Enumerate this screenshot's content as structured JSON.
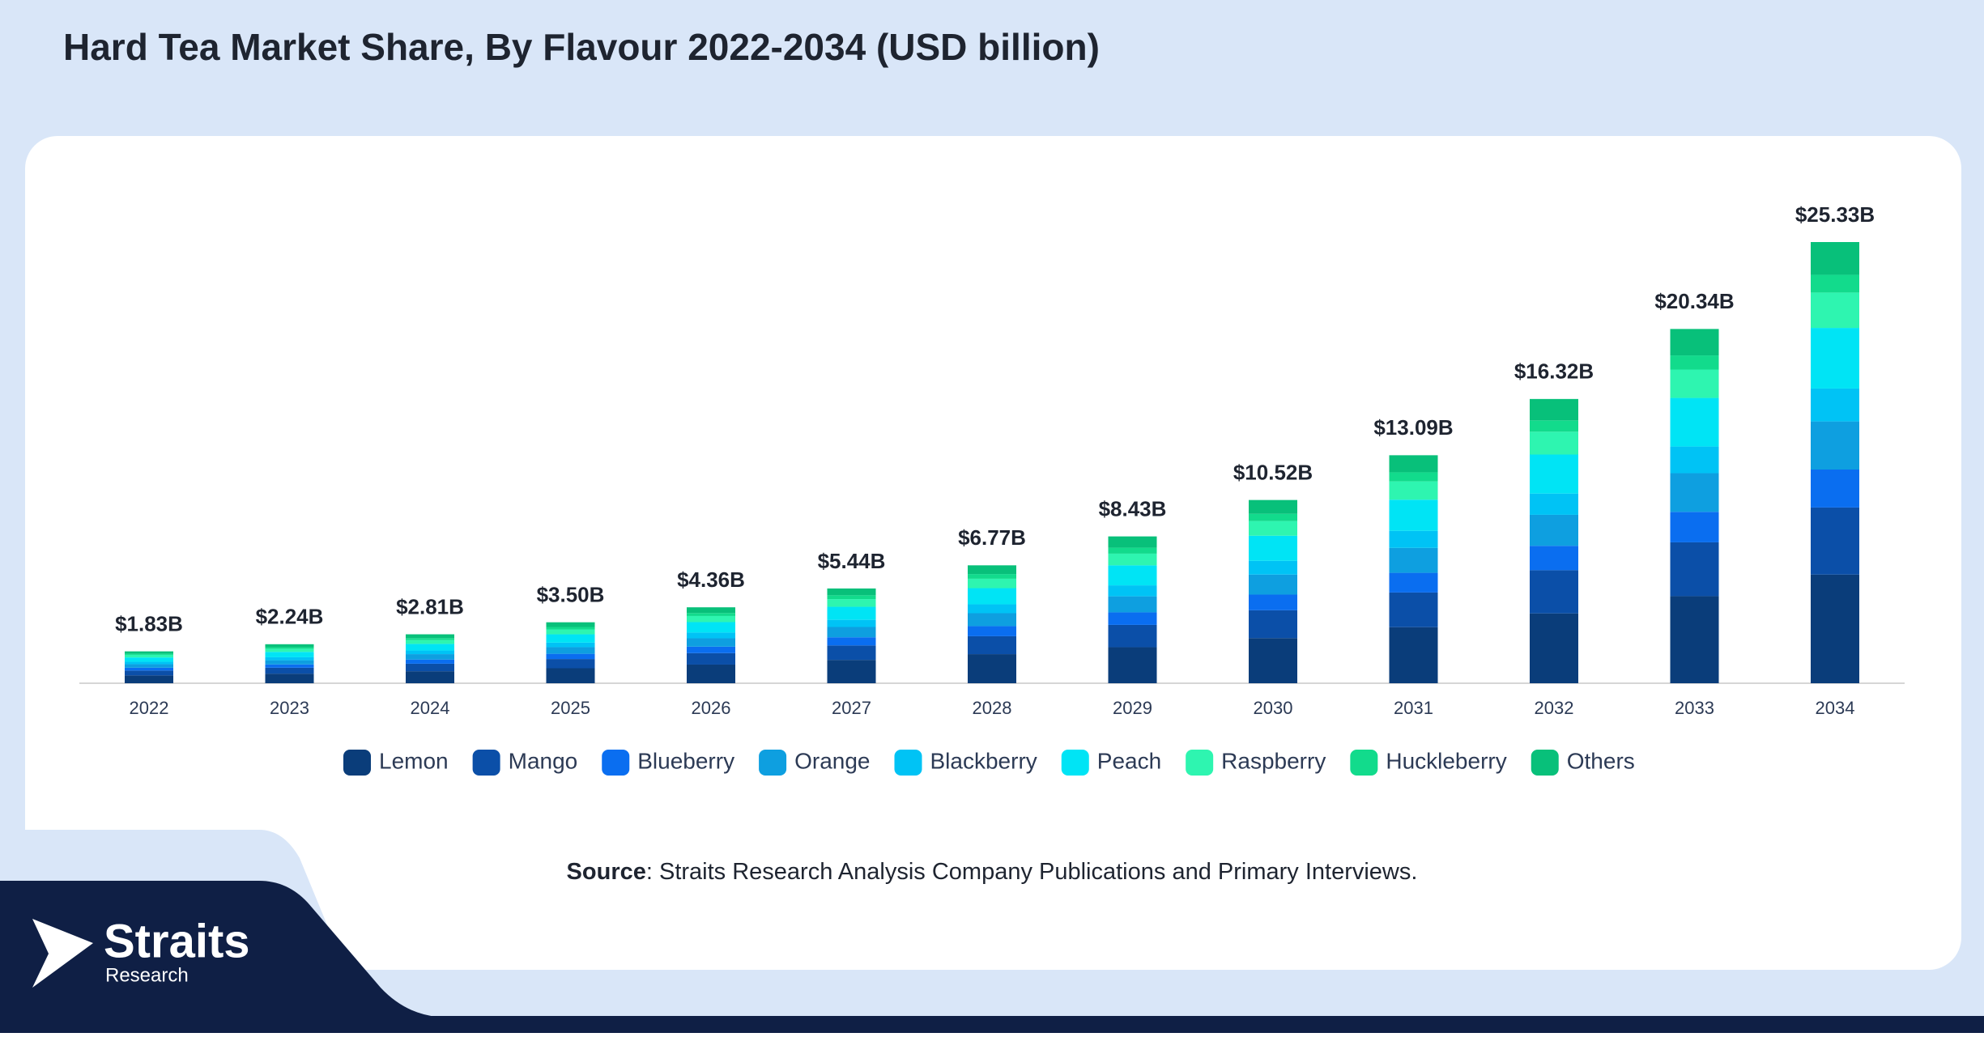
{
  "chart_data": {
    "type": "stacked-bar",
    "title": "Hard Tea Market Share, By Flavour 2022-2034 (USD billion)",
    "categories": [
      "2022",
      "2023",
      "2024",
      "2025",
      "2026",
      "2027",
      "2028",
      "2029",
      "2030",
      "2031",
      "2032",
      "2033",
      "2034"
    ],
    "series": [
      {
        "name": "Lemon",
        "color": "#0a3d7a",
        "values": [
          0.45,
          0.55,
          0.69,
          0.86,
          1.07,
          1.34,
          1.67,
          2.07,
          2.59,
          3.22,
          4.01,
          5.0,
          6.24
        ]
      },
      {
        "name": "Mango",
        "color": "#0b4fa8",
        "values": [
          0.28,
          0.34,
          0.43,
          0.53,
          0.66,
          0.83,
          1.03,
          1.28,
          1.6,
          1.99,
          2.48,
          3.09,
          3.85
        ]
      },
      {
        "name": "Blueberry",
        "color": "#0a6ef0",
        "values": [
          0.16,
          0.19,
          0.24,
          0.3,
          0.37,
          0.47,
          0.58,
          0.72,
          0.9,
          1.13,
          1.4,
          1.75,
          2.18
        ]
      },
      {
        "name": "Orange",
        "color": "#0e9fe0",
        "values": [
          0.2,
          0.24,
          0.31,
          0.38,
          0.48,
          0.59,
          0.74,
          0.92,
          1.15,
          1.43,
          1.78,
          2.22,
          2.76
        ]
      },
      {
        "name": "Blackberry",
        "color": "#00c3f5",
        "values": [
          0.14,
          0.17,
          0.21,
          0.26,
          0.33,
          0.41,
          0.51,
          0.63,
          0.79,
          0.98,
          1.22,
          1.53,
          1.89
        ]
      },
      {
        "name": "Peach",
        "color": "#00e4f5",
        "values": [
          0.25,
          0.31,
          0.38,
          0.48,
          0.6,
          0.75,
          0.93,
          1.15,
          1.44,
          1.79,
          2.24,
          2.79,
          3.48
        ]
      },
      {
        "name": "Raspberry",
        "color": "#2ef5b0",
        "values": [
          0.15,
          0.18,
          0.22,
          0.28,
          0.35,
          0.44,
          0.54,
          0.67,
          0.84,
          1.05,
          1.31,
          1.63,
          2.03
        ]
      },
      {
        "name": "Huckleberry",
        "color": "#12db8c",
        "values": [
          0.07,
          0.09,
          0.11,
          0.14,
          0.17,
          0.22,
          0.27,
          0.34,
          0.42,
          0.52,
          0.65,
          0.81,
          1.02
        ]
      },
      {
        "name": "Others",
        "color": "#08c07a",
        "values": [
          0.13,
          0.17,
          0.22,
          0.27,
          0.33,
          0.39,
          0.5,
          0.65,
          0.79,
          0.98,
          1.23,
          1.52,
          1.88
        ]
      }
    ],
    "totals": {
      "values": [
        1.83,
        2.24,
        2.81,
        3.5,
        4.36,
        5.44,
        6.77,
        8.43,
        10.52,
        13.09,
        16.32,
        20.34,
        25.33
      ],
      "value_labels": [
        "$1.83B",
        "$2.24B",
        "$2.81B",
        "$3.50B",
        "$4.36B",
        "$5.44B",
        "$6.77B",
        "$8.43B",
        "$10.52B",
        "$13.09B",
        "$16.32B",
        "$20.34B",
        "$25.33B"
      ]
    },
    "legend": "bottom"
  },
  "source": {
    "label": "Source",
    "text": ": Straits Research Analysis Company Publications and Primary Interviews."
  },
  "logo": {
    "name": "Straits",
    "tagline": "Research"
  }
}
